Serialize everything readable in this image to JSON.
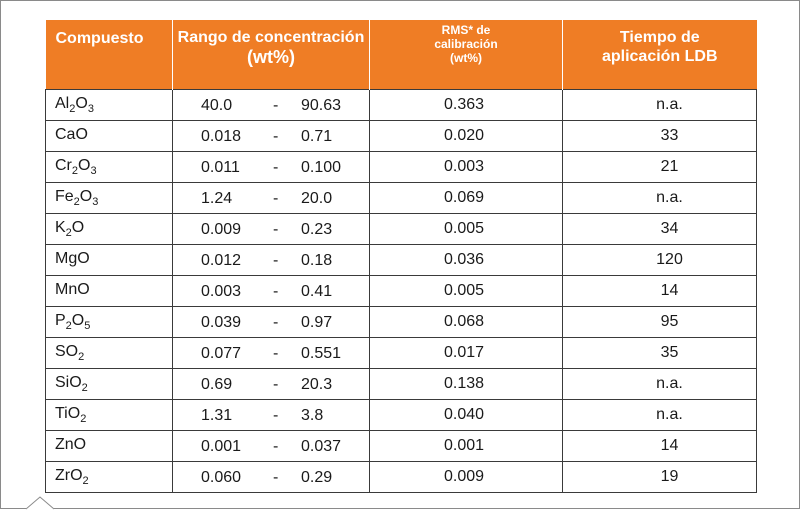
{
  "header": {
    "compuesto": "Compuesto",
    "rango_line1": "Rango de concentración",
    "rango_line2": "(wt%)",
    "rms_line1": "RMS* de",
    "rms_line2": "calibración",
    "rms_line3": "(wt%)",
    "tiempo_line1": "Tiempo de",
    "tiempo_line2": "aplicación LDB"
  },
  "range_separator": "-",
  "rows": [
    {
      "comp": [
        "Al",
        "2",
        "O",
        "3",
        ""
      ],
      "min": "40.0",
      "max": "90.63",
      "rms": "0.363",
      "tiempo": "n.a."
    },
    {
      "comp": [
        "CaO",
        "",
        "",
        "",
        ""
      ],
      "min": "0.018",
      "max": "0.71",
      "rms": "0.020",
      "tiempo": "33"
    },
    {
      "comp": [
        "Cr",
        "2",
        "O",
        "3",
        ""
      ],
      "min": "0.011",
      "max": "0.100",
      "rms": "0.003",
      "tiempo": "21"
    },
    {
      "comp": [
        "Fe",
        "2",
        "O",
        "3",
        ""
      ],
      "min": "1.24",
      "max": "20.0",
      "rms": "0.069",
      "tiempo": "n.a."
    },
    {
      "comp": [
        "K",
        "2",
        "O",
        "",
        ""
      ],
      "min": "0.009",
      "max": "0.23",
      "rms": "0.005",
      "tiempo": "34"
    },
    {
      "comp": [
        "MgO",
        "",
        "",
        "",
        ""
      ],
      "min": "0.012",
      "max": "0.18",
      "rms": "0.036",
      "tiempo": "120"
    },
    {
      "comp": [
        "MnO",
        "",
        "",
        "",
        ""
      ],
      "min": "0.003",
      "max": "0.41",
      "rms": "0.005",
      "tiempo": "14"
    },
    {
      "comp": [
        "P",
        "2",
        "O",
        "5",
        ""
      ],
      "min": "0.039",
      "max": "0.97",
      "rms": "0.068",
      "tiempo": "95"
    },
    {
      "comp": [
        "SO",
        "2",
        "",
        "",
        ""
      ],
      "min": "0.077",
      "max": "0.551",
      "rms": "0.017",
      "tiempo": "35"
    },
    {
      "comp": [
        "SiO",
        "2",
        "",
        "",
        ""
      ],
      "min": "0.69",
      "max": "20.3",
      "rms": "0.138",
      "tiempo": "n.a."
    },
    {
      "comp": [
        "TiO",
        "2",
        "",
        "",
        ""
      ],
      "min": "1.31",
      "max": "3.8",
      "rms": "0.040",
      "tiempo": "n.a."
    },
    {
      "comp": [
        "ZnO",
        "",
        "",
        "",
        ""
      ],
      "min": "0.001",
      "max": "0.037",
      "rms": "0.001",
      "tiempo": "14"
    },
    {
      "comp": [
        "ZrO",
        "2",
        "",
        "",
        ""
      ],
      "min": "0.060",
      "max": "0.29",
      "rms": "0.009",
      "tiempo": "19"
    }
  ],
  "colors": {
    "header_bg": "#ef7d25",
    "header_text": "#ffffff",
    "border": "#3a3a3a",
    "frame": "#8a8a8a"
  }
}
